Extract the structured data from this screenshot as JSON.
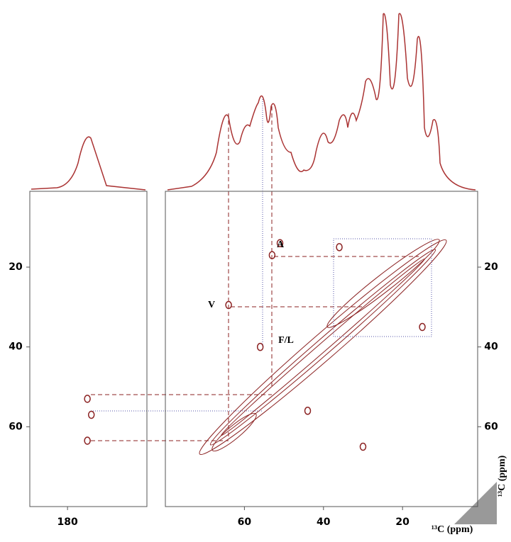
{
  "chart_data": [
    {
      "type": "contour",
      "xlim": [
        189.5,
        160
      ],
      "xticks": [
        180
      ],
      "ylim": [
        1,
        80
      ],
      "yticks": [
        20,
        40,
        60
      ],
      "color": "#8b2222",
      "peaks": {
        "x": [
          175,
          175,
          174
        ],
        "y": [
          53,
          63.5,
          57
        ]
      }
    },
    {
      "type": "contour",
      "xlim": [
        80,
        1
      ],
      "xticks": [
        60,
        40,
        20
      ],
      "ylim": [
        1,
        80
      ],
      "yticks": [
        20,
        40,
        60
      ],
      "color": "#8b2222",
      "xlabel": "¹³C (ppm)",
      "ylabel": "¹³C (ppm)",
      "peaks": {
        "x": [
          53,
          64,
          56,
          36,
          15,
          30,
          44,
          51
        ],
        "y": [
          17,
          29.5,
          40,
          15,
          35,
          65,
          56,
          14
        ]
      },
      "annotations": [
        "A",
        "V",
        "F/L"
      ]
    }
  ]
}
